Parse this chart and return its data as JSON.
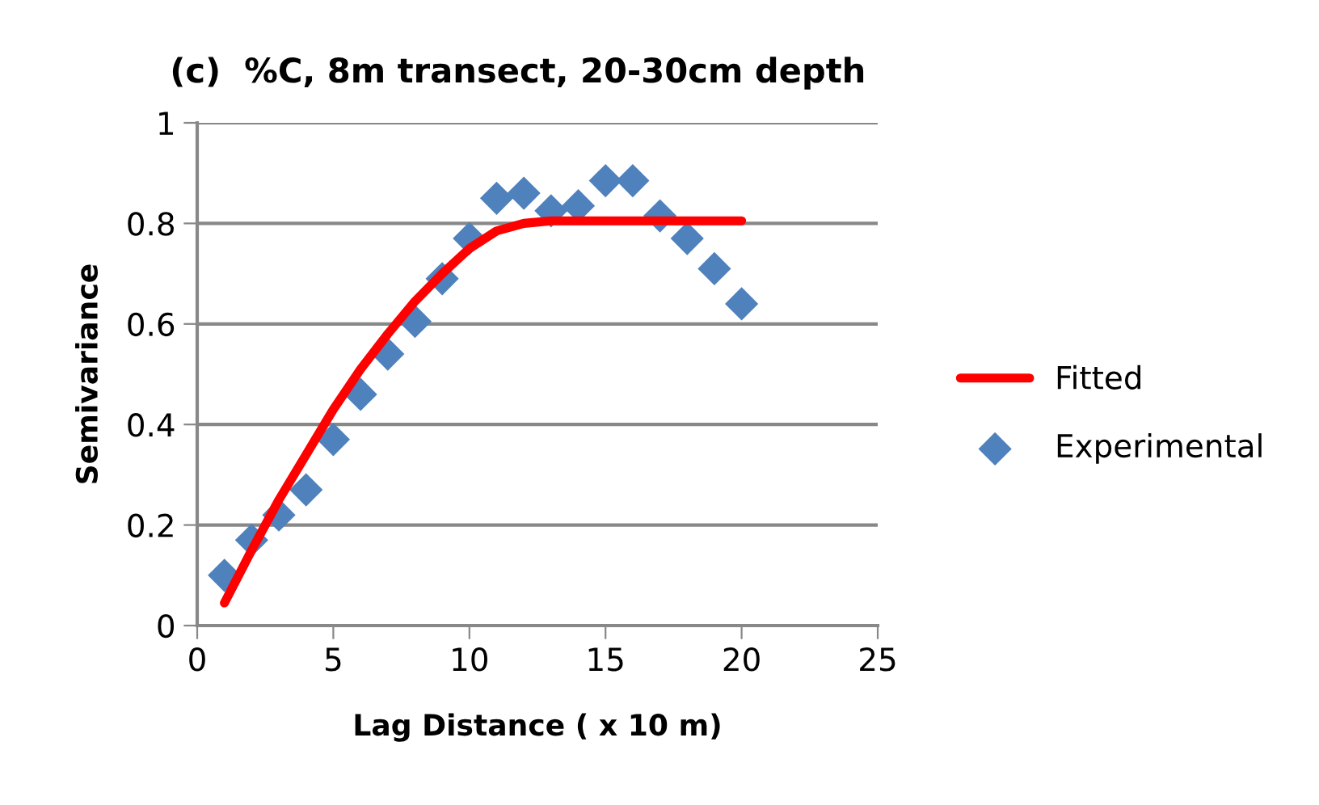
{
  "chart_data": {
    "type": "scatter",
    "title": "(c)  %C, 8m transect, 20-30cm depth",
    "xlabel": "Lag Distance ( x 10 m)",
    "ylabel": "Semivariance",
    "xlim": [
      0,
      25
    ],
    "xticks": [
      0,
      5,
      10,
      15,
      20,
      25
    ],
    "ylim": [
      0,
      1
    ],
    "yticks": [
      0,
      0.2,
      0.4,
      0.6,
      0.8,
      1
    ],
    "grid": "y",
    "legend": "right",
    "series": [
      {
        "name": "Fitted",
        "type": "line",
        "color": "#ff0000",
        "marker": "none",
        "line_style": "solid",
        "x": [
          1,
          2,
          3,
          4,
          5,
          6,
          7,
          8,
          9,
          10,
          11,
          12,
          13,
          14,
          15,
          16,
          17,
          18,
          19,
          20
        ],
        "values": [
          0.045,
          0.15,
          0.25,
          0.34,
          0.43,
          0.51,
          0.58,
          0.645,
          0.7,
          0.75,
          0.785,
          0.8,
          0.805,
          0.805,
          0.805,
          0.805,
          0.805,
          0.805,
          0.805,
          0.805
        ]
      },
      {
        "name": "Experimental",
        "color": "#4f81bd",
        "marker": "diamond",
        "x": [
          1,
          2,
          3,
          4,
          5,
          6,
          7,
          8,
          9,
          10,
          11,
          12,
          13,
          14,
          15,
          16,
          17,
          18,
          19,
          20
        ],
        "values": [
          0.1,
          0.17,
          0.22,
          0.27,
          0.37,
          0.46,
          0.54,
          0.605,
          0.69,
          0.77,
          0.85,
          0.86,
          0.825,
          0.835,
          0.885,
          0.885,
          0.815,
          0.77,
          0.71,
          0.64
        ]
      }
    ]
  }
}
